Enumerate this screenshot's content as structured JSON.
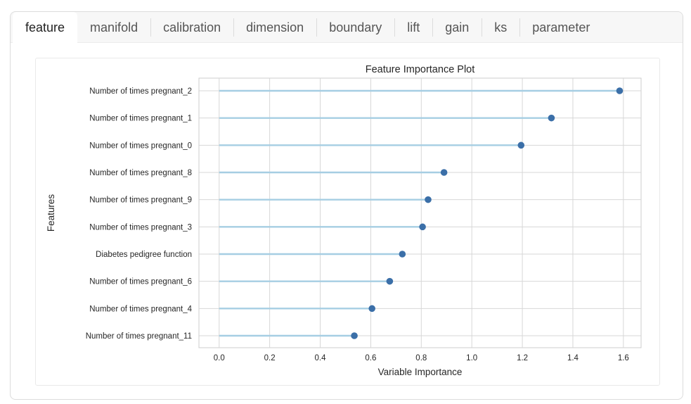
{
  "tabs": [
    {
      "label": "feature",
      "active": true
    },
    {
      "label": "manifold",
      "active": false
    },
    {
      "label": "calibration",
      "active": false
    },
    {
      "label": "dimension",
      "active": false
    },
    {
      "label": "boundary",
      "active": false
    },
    {
      "label": "lift",
      "active": false
    },
    {
      "label": "gain",
      "active": false
    },
    {
      "label": "ks",
      "active": false
    },
    {
      "label": "parameter",
      "active": false
    }
  ],
  "chart_data": {
    "type": "lollipop",
    "title": "Feature Importance Plot",
    "xlabel": "Variable Importance",
    "ylabel": "Features",
    "xlim": [
      -0.08,
      1.67
    ],
    "xticks": [
      "0.0",
      "0.2",
      "0.4",
      "0.6",
      "0.8",
      "1.0",
      "1.2",
      "1.4",
      "1.6"
    ],
    "grid": true,
    "categories": [
      "Number of times pregnant_2",
      "Number of times pregnant_1",
      "Number of times pregnant_0",
      "Number of times pregnant_8",
      "Number of times pregnant_9",
      "Number of times pregnant_3",
      "Diabetes pedigree function",
      "Number of times pregnant_6",
      "Number of times pregnant_4",
      "Number of times pregnant_11"
    ],
    "values": [
      1.585,
      1.315,
      1.195,
      0.89,
      0.827,
      0.805,
      0.725,
      0.675,
      0.605,
      0.535
    ],
    "line_color": "#a6cee3",
    "point_color": "#3b6fa8",
    "grid_color": "#d7d7d7"
  }
}
